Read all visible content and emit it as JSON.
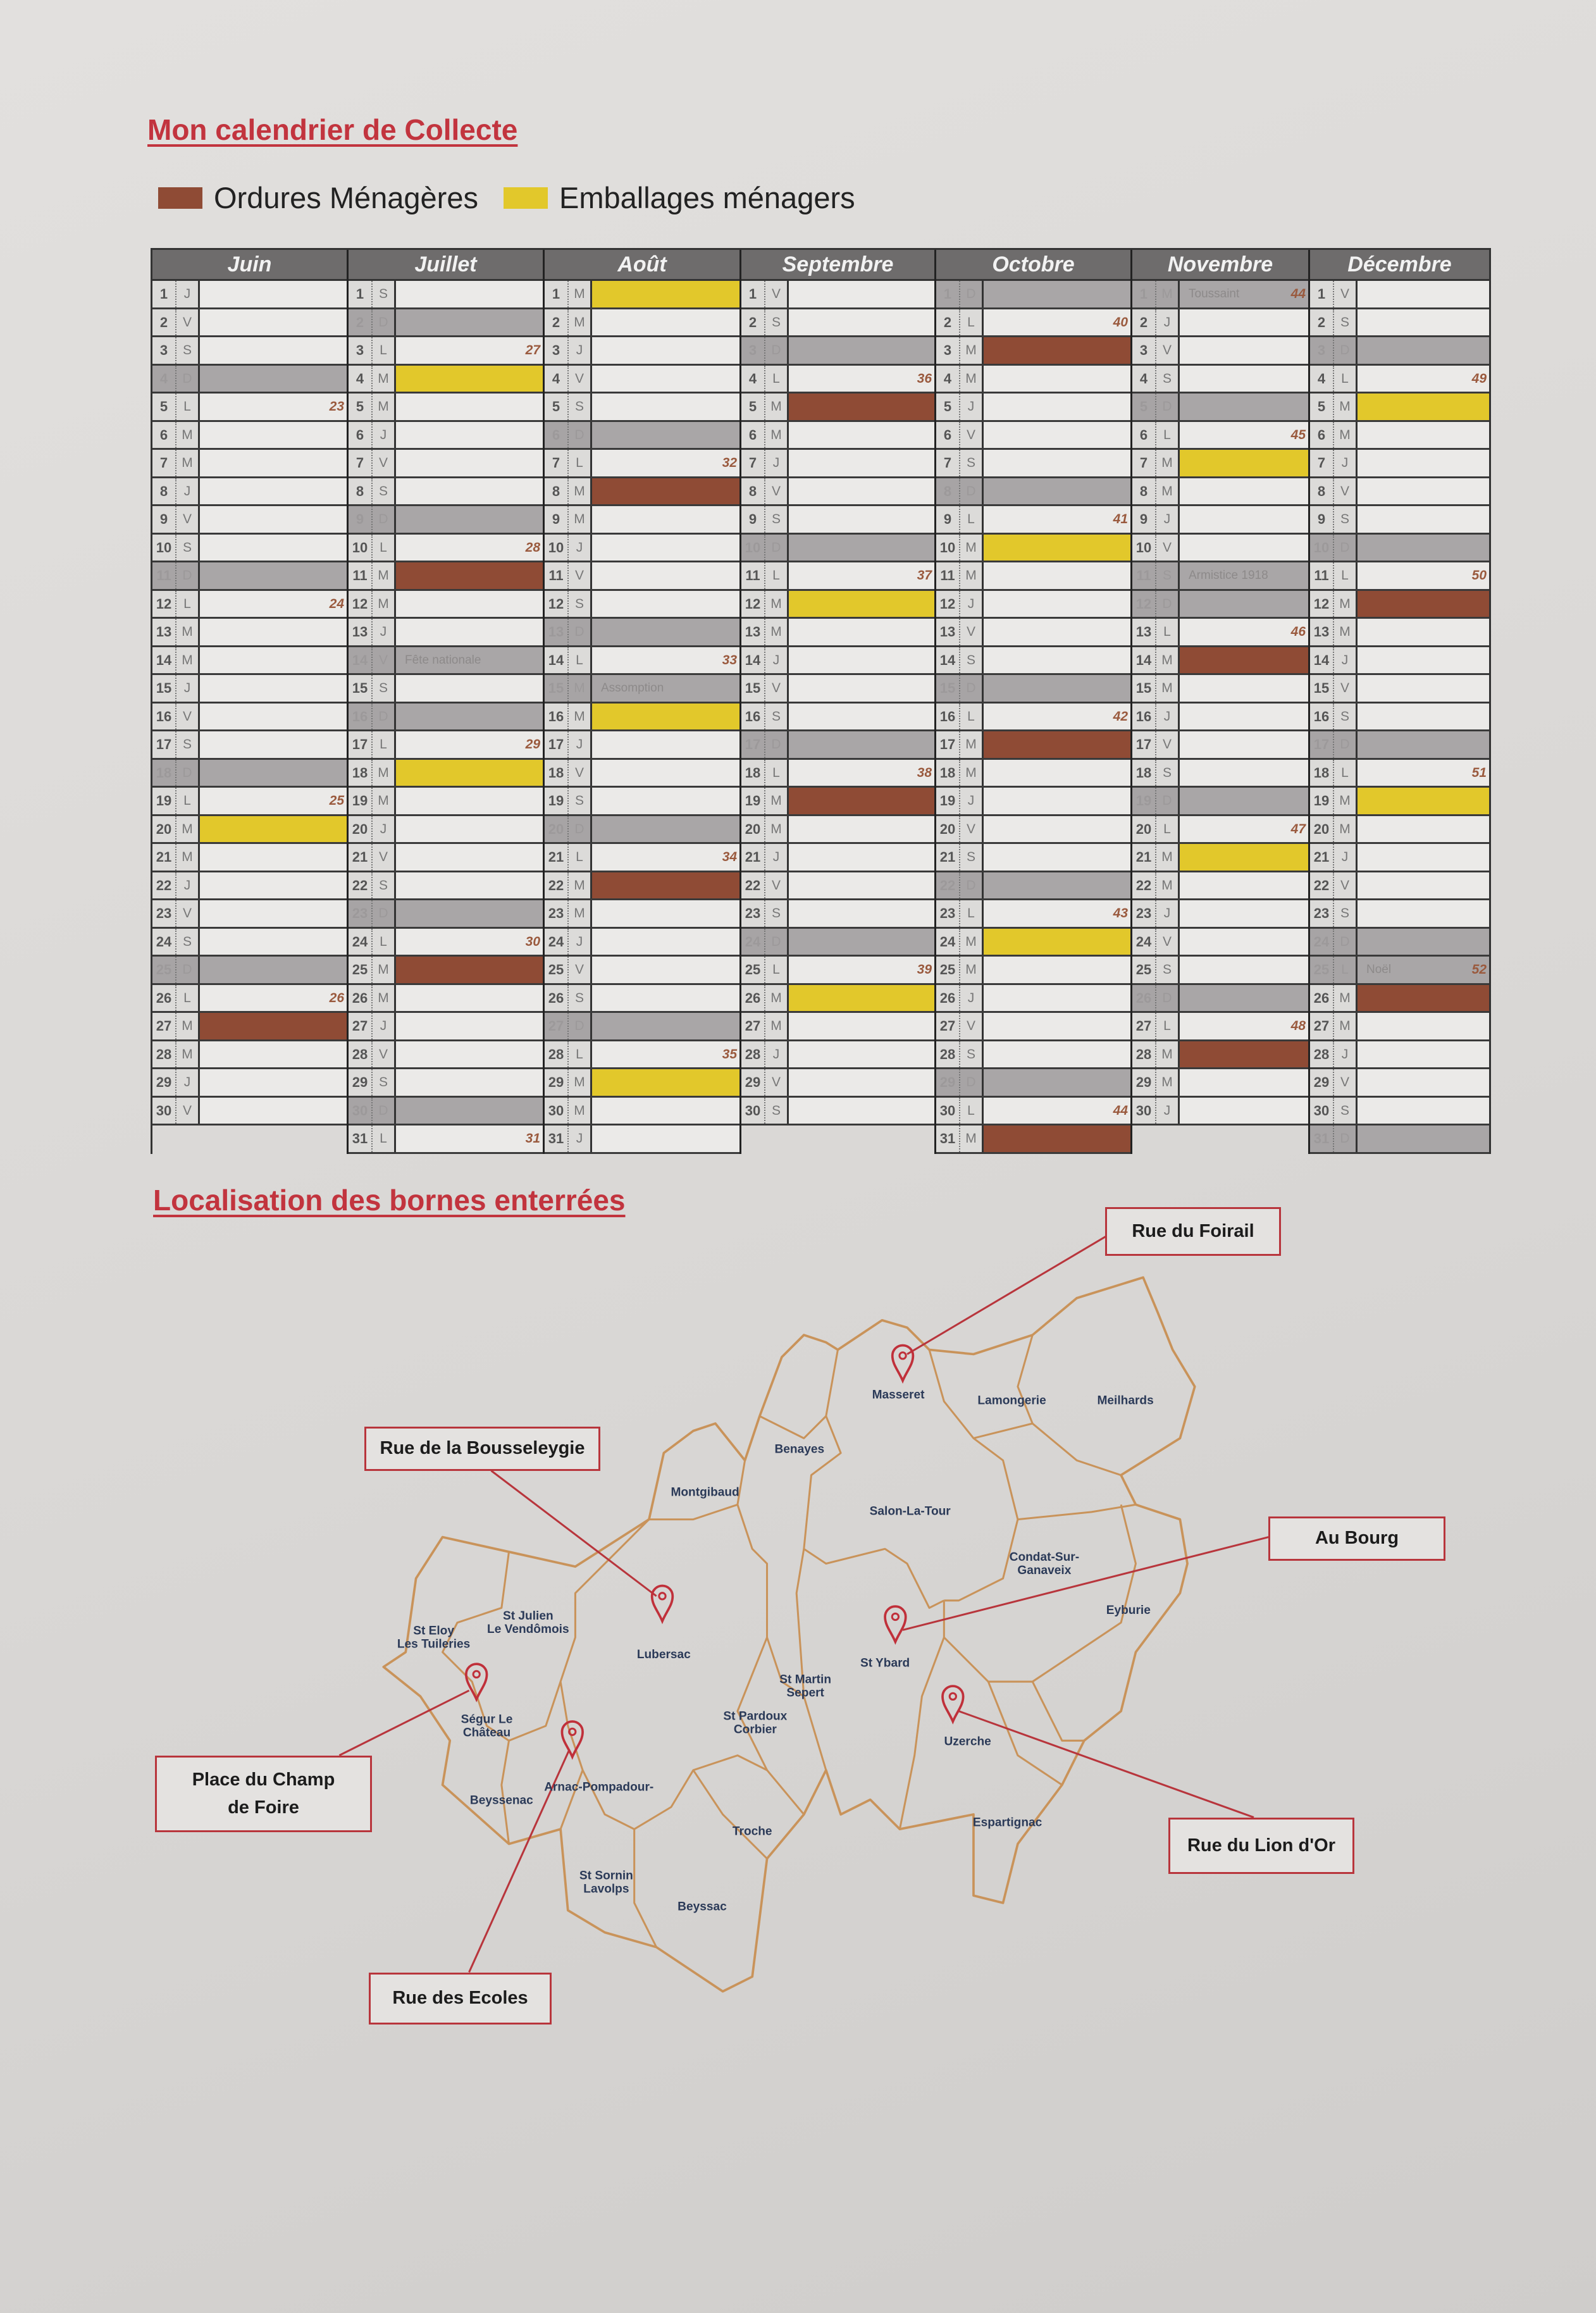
{
  "calendar": {
    "title": "Mon calendrier de Collecte",
    "legend": [
      {
        "label": "Ordures Ménagères",
        "color": "#8f4b35"
      },
      {
        "label": "Emballages ménagers",
        "color": "#e2c82b"
      }
    ],
    "weekday_letters": [
      "L",
      "M",
      "M",
      "J",
      "V",
      "S",
      "D"
    ],
    "colors": {
      "ordures": "#8f4b35",
      "emballages": "#e2c82b",
      "holiday_sunday": "#a9a6a7",
      "header": "#6e6c6c"
    },
    "months": [
      {
        "name": "Juin",
        "days": 30,
        "first_weekday": 3,
        "ordures": [
          27
        ],
        "emballages": [
          20
        ],
        "holidays": {},
        "weeks": {
          "5": "23",
          "12": "24",
          "19": "25",
          "26": "26"
        }
      },
      {
        "name": "Juillet",
        "days": 31,
        "first_weekday": 5,
        "ordures": [
          11,
          25
        ],
        "emballages": [
          4,
          18
        ],
        "holidays": {
          "14": "Fête nationale"
        },
        "weeks": {
          "3": "27",
          "10": "28",
          "17": "29",
          "24": "30",
          "31": "31"
        }
      },
      {
        "name": "Août",
        "days": 31,
        "first_weekday": 1,
        "ordures": [
          8,
          22
        ],
        "emballages": [
          1,
          16,
          29
        ],
        "holidays": {
          "15": "Assomption"
        },
        "weeks": {
          "7": "32",
          "14": "33",
          "21": "34",
          "28": "35"
        }
      },
      {
        "name": "Septembre",
        "days": 30,
        "first_weekday": 4,
        "ordures": [
          5,
          19
        ],
        "emballages": [
          12,
          26
        ],
        "holidays": {},
        "weeks": {
          "4": "36",
          "11": "37",
          "18": "38",
          "25": "39"
        }
      },
      {
        "name": "Octobre",
        "days": 31,
        "first_weekday": 6,
        "ordures": [
          3,
          17,
          31
        ],
        "emballages": [
          10,
          24
        ],
        "holidays": {},
        "weeks": {
          "2": "40",
          "9": "41",
          "16": "42",
          "23": "43",
          "30": "44"
        }
      },
      {
        "name": "Novembre",
        "days": 30,
        "first_weekday": 2,
        "ordures": [
          14,
          28
        ],
        "emballages": [
          7,
          21
        ],
        "holidays": {
          "1": "Toussaint",
          "11": "Armistice 1918"
        },
        "weeks": {
          "1": "44",
          "6": "45",
          "13": "46",
          "20": "47",
          "27": "48"
        }
      },
      {
        "name": "Décembre",
        "days": 31,
        "first_weekday": 4,
        "ordures": [
          12,
          26
        ],
        "emballages": [
          5,
          19
        ],
        "holidays": {
          "25": "Noël"
        },
        "weeks": {
          "4": "49",
          "11": "50",
          "18": "51",
          "25": "52"
        }
      }
    ]
  },
  "map": {
    "title": "Localisation des bornes enterrées",
    "communes": [
      "Masseret",
      "Lamongerie",
      "Meilhards",
      "Benayes",
      "Montgibaud",
      "Salon-La-Tour",
      "Condat-Sur-Ganaveix",
      "Eyburie",
      "St Julien Le Vendômois",
      "St Eloy Les Tuileries",
      "Lubersac",
      "St Ybard",
      "St Martin Sepert",
      "St Pardoux Corbier",
      "Ségur Le Château",
      "Uzerche",
      "Beyssenac",
      "Arnac-Pompadour",
      "Troche",
      "Espartignac",
      "St Sornin Lavolps",
      "Beyssac"
    ],
    "callouts": [
      {
        "label": "Rue du Foirail",
        "commune": "Masseret"
      },
      {
        "label": "Rue de la Bousseleygie",
        "commune": "Lubersac"
      },
      {
        "label": "Au Bourg",
        "commune": "St Ybard"
      },
      {
        "label": "Place du Champ de Foire",
        "commune": "Ségur Le Château"
      },
      {
        "label": "Rue du Lion d'Or",
        "commune": "Uzerche"
      },
      {
        "label": "Rue des Ecoles",
        "commune": "Arnac-Pompadour"
      }
    ],
    "colors": {
      "boundary": "#c9935a",
      "pin": "#c0303a",
      "label": "#2b3a58"
    }
  }
}
